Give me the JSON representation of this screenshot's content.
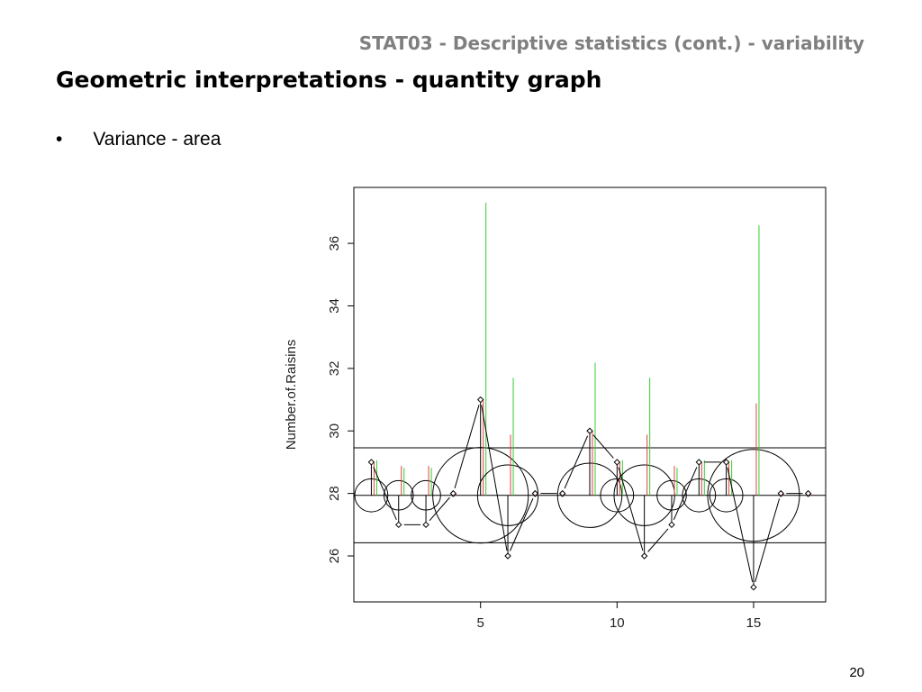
{
  "header": "STAT03 - Descriptive  statistics (cont.) - variability",
  "title": "Geometric interpretations - quantity graph",
  "bullet": "Variance - area",
  "page_number": "20",
  "chart_data": {
    "type": "quantity",
    "y_label": "Number.of.Raisins",
    "x": [
      1,
      2,
      3,
      4,
      5,
      6,
      7,
      8,
      9,
      10,
      11,
      12,
      13,
      14,
      15,
      16,
      17
    ],
    "values": [
      29,
      27,
      27,
      28,
      31,
      26,
      28,
      28,
      30,
      29,
      26,
      27,
      29,
      29,
      25,
      28,
      28
    ],
    "hlines": [
      27.94,
      29.46,
      26.42
    ],
    "red_tops": [
      29.0,
      28.88,
      28.88,
      28.0,
      31.0,
      29.88,
      28.0,
      28.0,
      30.0,
      29.0,
      29.88,
      28.88,
      29.0,
      29.0,
      30.88,
      28.0,
      28.0
    ],
    "green_tops": [
      29.06,
      28.82,
      28.82,
      27.94,
      37.3,
      31.7,
      27.94,
      27.94,
      32.18,
      29.06,
      31.7,
      28.82,
      29.06,
      29.06,
      36.58,
      27.94,
      27.94
    ],
    "red_color": "#e04040",
    "green_color": "#30d030",
    "xlim": [
      0.36,
      17.64
    ],
    "ylim": [
      24.53,
      37.79
    ],
    "xticks": [
      5,
      10,
      15
    ],
    "yticks": [
      26,
      28,
      30,
      32,
      34,
      36
    ]
  }
}
